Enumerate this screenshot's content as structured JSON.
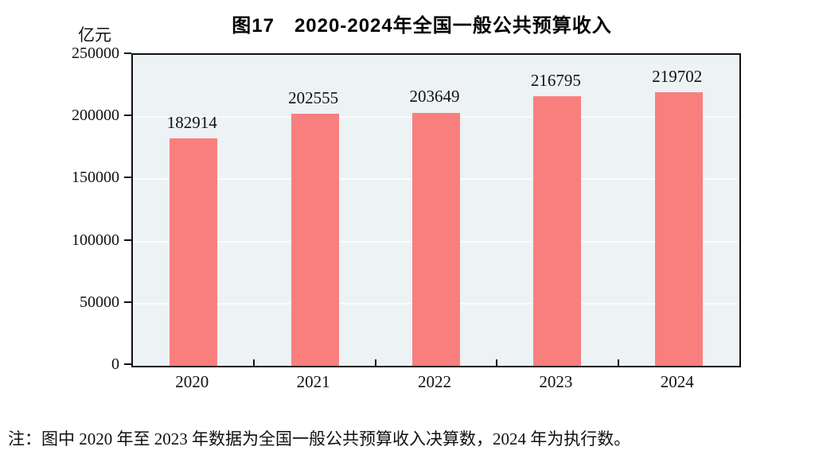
{
  "figure": {
    "title": "图17　2020-2024年全国一般公共预算收入",
    "unit_label": "亿元",
    "note": "注：图中 2020 年至 2023 年数据为全国一般公共预算收入决算数，2024 年为执行数。"
  },
  "colors": {
    "bar": "#f97f7f",
    "plot_background": "#edf2f5",
    "gridline": "#f9fcfd",
    "axis": "#111111"
  },
  "chart_data": {
    "type": "bar",
    "title": "图17　2020-2024年全国一般公共预算收入",
    "categories": [
      "2020",
      "2021",
      "2022",
      "2023",
      "2024"
    ],
    "values": [
      182914,
      202555,
      203649,
      216795,
      219702
    ],
    "xlabel": "",
    "ylabel": "亿元",
    "ylim": [
      0,
      250000
    ],
    "yticks": [
      0,
      50000,
      100000,
      150000,
      200000,
      250000
    ],
    "grid": true,
    "legend": false,
    "note": "注：图中 2020 年至 2023 年数据为全国一般公共预算收入决算数，2024 年为执行数。"
  }
}
